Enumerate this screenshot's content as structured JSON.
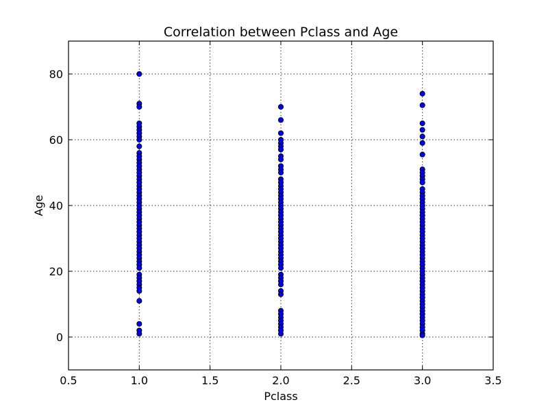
{
  "chart_data": {
    "type": "scatter",
    "title": "Correlation between Pclass and Age",
    "xlabel": "Pclass",
    "ylabel": "Age",
    "xlim": [
      0.5,
      3.5
    ],
    "ylim": [
      -10,
      90
    ],
    "xticks": [
      "0.5",
      "1.0",
      "1.5",
      "2.0",
      "2.5",
      "3.0",
      "3.5"
    ],
    "yticks": [
      "0",
      "20",
      "40",
      "60",
      "80"
    ],
    "grid": true,
    "colors": {
      "marker_fill": "#0000ff",
      "marker_edge": "#000000",
      "grid": "#000000"
    },
    "series": [
      {
        "x": 1.0,
        "y": [
          80,
          71,
          70,
          65,
          64,
          63,
          62,
          61,
          60,
          58,
          56,
          55,
          54,
          53,
          52,
          51,
          50,
          49,
          48,
          47,
          46,
          45,
          44,
          43,
          42,
          41,
          40,
          39,
          38,
          37,
          36,
          35,
          34,
          33,
          32,
          31,
          30,
          29,
          28,
          27,
          26,
          25,
          24,
          23,
          22,
          21,
          19,
          18,
          17,
          16,
          15,
          14,
          11,
          4,
          2,
          1
        ]
      },
      {
        "x": 2.0,
        "y": [
          70,
          66,
          62,
          60,
          59,
          58,
          57,
          55,
          54,
          52,
          51,
          50,
          48,
          47,
          46,
          45,
          44,
          43,
          42,
          41,
          40,
          39,
          38,
          37,
          36,
          35,
          34,
          33,
          32,
          31,
          30,
          29,
          28,
          27,
          26,
          25,
          24,
          23,
          22,
          21,
          19,
          18,
          17,
          16,
          14,
          13,
          8,
          7,
          6,
          5,
          4,
          3,
          2,
          1
        ]
      },
      {
        "x": 3.0,
        "y": [
          74,
          70.5,
          65,
          63,
          61,
          59,
          55.5,
          51,
          50,
          49,
          48,
          47,
          45,
          44,
          43,
          42,
          41,
          40,
          39,
          38,
          37,
          36,
          35,
          34,
          33,
          32,
          31,
          30,
          29,
          28,
          27,
          26,
          25,
          24,
          23,
          22,
          21,
          20,
          19,
          18,
          17,
          16,
          15,
          14,
          13,
          12,
          11,
          10,
          9,
          8,
          7,
          6,
          5,
          4,
          3,
          2,
          1,
          0.5
        ]
      }
    ]
  }
}
